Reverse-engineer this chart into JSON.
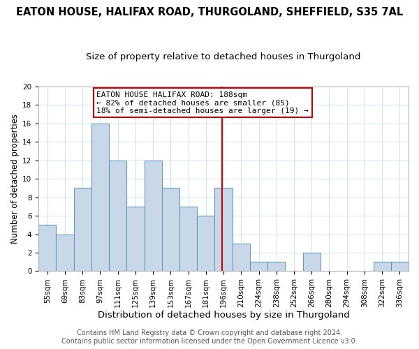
{
  "title": "EATON HOUSE, HALIFAX ROAD, THURGOLAND, SHEFFIELD, S35 7AL",
  "subtitle": "Size of property relative to detached houses in Thurgoland",
  "xlabel": "Distribution of detached houses by size in Thurgoland",
  "ylabel": "Number of detached properties",
  "bin_labels": [
    "55sqm",
    "69sqm",
    "83sqm",
    "97sqm",
    "111sqm",
    "125sqm",
    "139sqm",
    "153sqm",
    "167sqm",
    "181sqm",
    "196sqm",
    "210sqm",
    "224sqm",
    "238sqm",
    "252sqm",
    "266sqm",
    "280sqm",
    "294sqm",
    "308sqm",
    "322sqm",
    "336sqm"
  ],
  "bar_heights": [
    5,
    4,
    9,
    16,
    12,
    7,
    12,
    9,
    7,
    6,
    9,
    3,
    1,
    1,
    0,
    2,
    0,
    0,
    0,
    1,
    1
  ],
  "bar_color": "#c8d8e8",
  "bar_edge_color": "#6699bb",
  "vline_x": 9.9,
  "vline_color": "#cc0000",
  "ylim": [
    0,
    20
  ],
  "annotation_title": "EATON HOUSE HALIFAX ROAD: 188sqm",
  "annotation_line1": "← 82% of detached houses are smaller (85)",
  "annotation_line2": "18% of semi-detached houses are larger (19) →",
  "annotation_box_color": "#ffffff",
  "annotation_box_edge": "#cc0000",
  "footer1": "Contains HM Land Registry data © Crown copyright and database right 2024.",
  "footer2": "Contains public sector information licensed under the Open Government Licence v3.0.",
  "title_fontsize": 10.5,
  "subtitle_fontsize": 9.5,
  "xlabel_fontsize": 9.5,
  "ylabel_fontsize": 8.5,
  "tick_fontsize": 7.5,
  "footer_fontsize": 7.0,
  "ann_fontsize": 8.0
}
